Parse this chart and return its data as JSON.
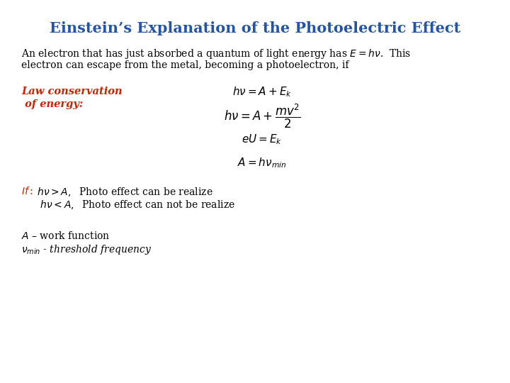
{
  "title": "Einstein’s Explanation of the Photoelectric Effect",
  "title_color": "#2255AA",
  "title_fontsize": 15,
  "bg_color": "#FFFFFF",
  "body_line1": "An electron that has just absorbed a quantum of light energy has $E = h\\nu$.  This",
  "body_line2": "electron can escape from the metal, becoming a photoelectron, if",
  "body_fontsize": 10,
  "label_law_line1": "Law conservation",
  "label_law_line2": " of energy:",
  "label_law_color": "#CC2200",
  "label_law_fontsize": 10.5,
  "eq1": "$h\\nu = A + E_k$",
  "eq2": "$h\\nu = A + \\dfrac{mv^2}{2}$",
  "eq3": "$eU = E_k$",
  "eq4": "$A = h\\nu_{min}$",
  "eq_fontsize": 11,
  "eq2_fontsize": 12,
  "if_red": "$If:$",
  "if_black1": " $h\\nu > A,$  Photo effect can be realize",
  "if_line2": "      $h\\nu < A,$  Photo effect can not be realize",
  "if_fontsize": 10,
  "if_color_red": "#CC2200",
  "footer1": "$A$ – work function",
  "footer2": "$\\nu_{min}$ - threshold frequency",
  "footer_fontsize": 10
}
